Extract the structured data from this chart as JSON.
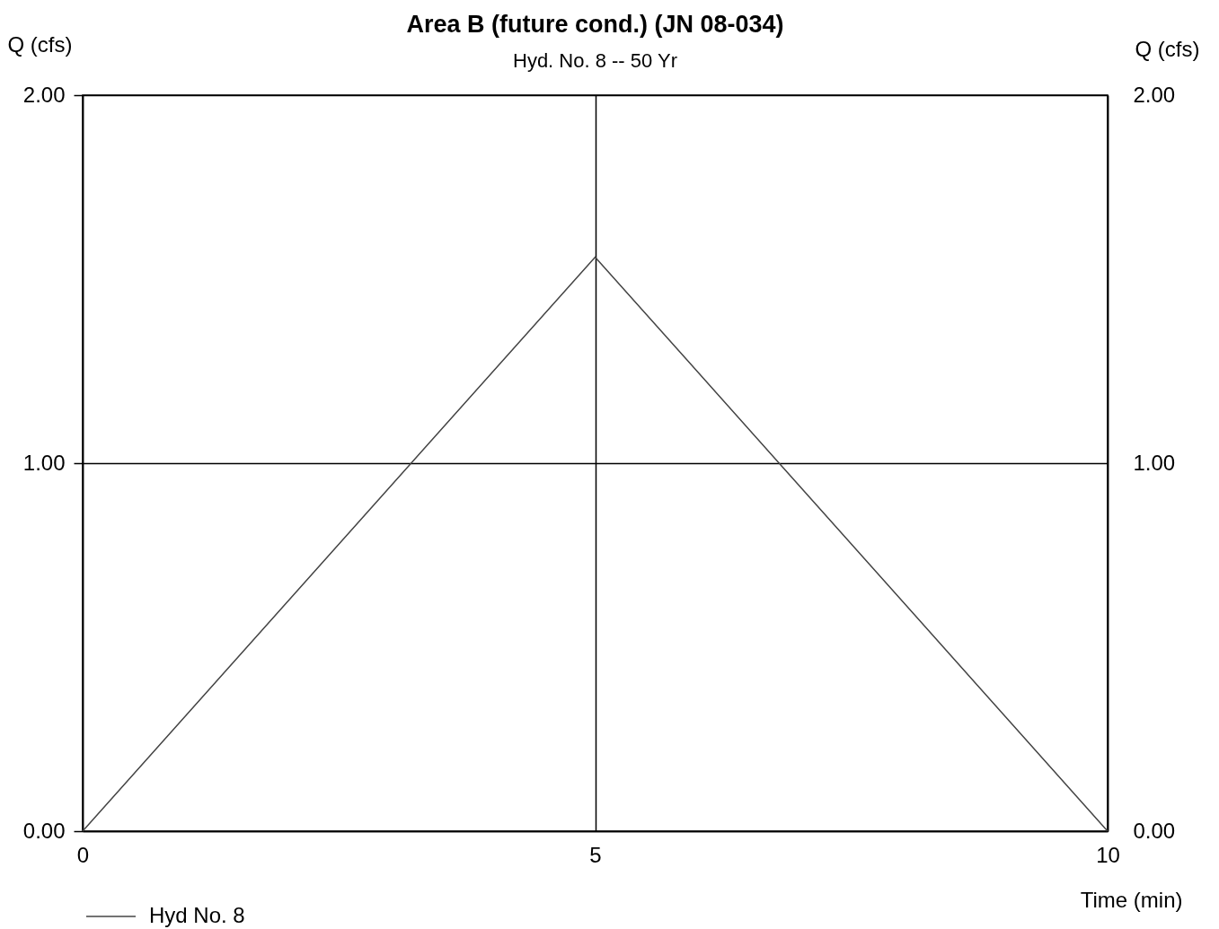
{
  "chart_data": {
    "type": "line",
    "title": "Area B (future cond.) (JN 08-034)",
    "subtitle": "Hyd. No. 8 -- 50 Yr",
    "xlabel": "Time (min)",
    "ylabel": "Q (cfs)",
    "y2label": "Q (cfs)",
    "x": [
      0,
      5,
      10
    ],
    "series": [
      {
        "name": "Hyd No. 8",
        "color": "#444444",
        "values": [
          0,
          1.56,
          0
        ]
      }
    ],
    "xlim": [
      0,
      10
    ],
    "xticks": [
      0,
      5,
      10
    ],
    "ylim": [
      0,
      2
    ],
    "yticks": [
      {
        "value": 0,
        "label": "0.00"
      },
      {
        "value": 1,
        "label": "1.00"
      },
      {
        "value": 2,
        "label": "2.00"
      }
    ],
    "y2lim": [
      0,
      2
    ],
    "y2ticks": [
      {
        "value": 0,
        "label": "0.00"
      },
      {
        "value": 1,
        "label": "1.00"
      },
      {
        "value": 2,
        "label": "2.00"
      }
    ],
    "grid": true,
    "legend": "bottom left",
    "line_style": "solid"
  }
}
